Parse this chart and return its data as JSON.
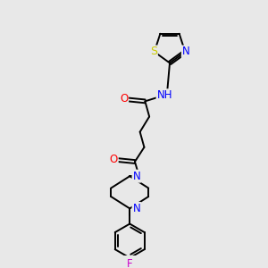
{
  "background_color": "#e8e8e8",
  "atom_colors": {
    "C": "#000000",
    "N": "#0000ff",
    "O": "#ff0000",
    "S": "#cccc00",
    "F": "#cc00cc",
    "H": "#888888"
  },
  "bond_color": "#000000",
  "font_size": 8.5,
  "figsize": [
    3.0,
    3.0
  ],
  "dpi": 100
}
